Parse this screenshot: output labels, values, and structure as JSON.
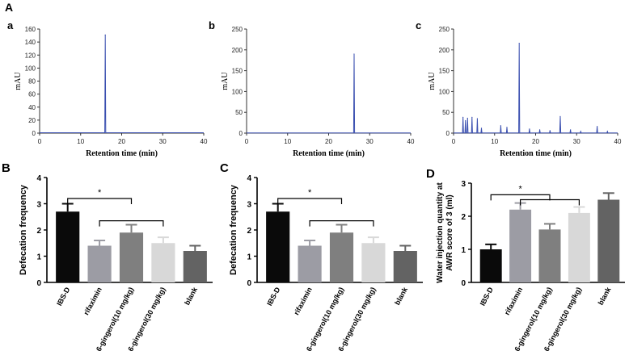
{
  "figure_label": "A",
  "colors": {
    "trace": "#3a4fb0",
    "axis": "#333333"
  },
  "chart_data": [
    {
      "id": "a",
      "type": "line",
      "panel_label": "a",
      "title": "",
      "xlabel": "Retention time (min)",
      "ylabel": "mAU",
      "xlim": [
        0,
        40
      ],
      "ylim": [
        0,
        160
      ],
      "xticks": [
        "0",
        "10",
        "20",
        "30",
        "40"
      ],
      "yticks": [
        "0",
        "20",
        "40",
        "60",
        "80",
        "100",
        "120",
        "140",
        "160"
      ],
      "peaks": [
        {
          "x": 16.0,
          "y": 151
        }
      ]
    },
    {
      "id": "b",
      "type": "line",
      "panel_label": "b",
      "title": "",
      "xlabel": "Retention time (min)",
      "ylabel": "mAU",
      "xlim": [
        0,
        40
      ],
      "ylim": [
        0,
        250
      ],
      "xticks": [
        "0",
        "10",
        "20",
        "30",
        "40"
      ],
      "yticks": [
        "0",
        "50",
        "100",
        "150",
        "200",
        "250"
      ],
      "peaks": [
        {
          "x": 26.2,
          "y": 190
        }
      ]
    },
    {
      "id": "c",
      "type": "line",
      "panel_label": "c",
      "title": "",
      "xlabel": "Retention time (min)",
      "ylabel": "mAU",
      "xlim": [
        0,
        40
      ],
      "ylim": [
        0,
        250
      ],
      "xticks": [
        "0",
        "10",
        "20",
        "30",
        "40"
      ],
      "yticks": [
        "0",
        "50",
        "100",
        "150",
        "200",
        "250"
      ],
      "peaks": [
        {
          "x": 2.3,
          "y": 38
        },
        {
          "x": 2.9,
          "y": 30
        },
        {
          "x": 3.4,
          "y": 36
        },
        {
          "x": 4.5,
          "y": 38
        },
        {
          "x": 5.8,
          "y": 35
        },
        {
          "x": 6.8,
          "y": 12
        },
        {
          "x": 11.5,
          "y": 18
        },
        {
          "x": 13.0,
          "y": 14
        },
        {
          "x": 16.0,
          "y": 216
        },
        {
          "x": 18.5,
          "y": 10
        },
        {
          "x": 21.0,
          "y": 8
        },
        {
          "x": 23.5,
          "y": 6
        },
        {
          "x": 26.0,
          "y": 40
        },
        {
          "x": 28.5,
          "y": 8
        },
        {
          "x": 31.0,
          "y": 4
        },
        {
          "x": 35.0,
          "y": 16
        },
        {
          "x": 37.5,
          "y": 4
        }
      ]
    },
    {
      "id": "B",
      "type": "bar",
      "panel_label": "B",
      "title": "",
      "xlabel": "",
      "ylabel": "Defecation frequency",
      "ylim": [
        0,
        4
      ],
      "yticks": [
        "0",
        "1",
        "2",
        "3",
        "4"
      ],
      "categories": [
        "IBS-D",
        "rifaximin",
        "6-gingerol(10 mg/kg)",
        "6-gingerol(30 mg/kg)",
        "blank"
      ],
      "values": [
        2.7,
        1.4,
        1.9,
        1.5,
        1.2
      ],
      "errors": [
        0.3,
        0.2,
        0.3,
        0.22,
        0.2
      ],
      "bar_colors": [
        "#0a0a0a",
        "#9c9ca4",
        "#7f7f7f",
        "#d8d8d8",
        "#636363"
      ],
      "significance": [
        {
          "from": 0,
          "to": 2,
          "y": 3.2,
          "label": "*"
        },
        {
          "from": 1,
          "to": 3,
          "y": 2.35,
          "label": ""
        }
      ]
    },
    {
      "id": "C",
      "type": "bar",
      "panel_label": "C",
      "title": "",
      "xlabel": "",
      "ylabel": "Defecation frequency",
      "ylim": [
        0,
        4
      ],
      "yticks": [
        "0",
        "1",
        "2",
        "3",
        "4"
      ],
      "categories": [
        "IBS-D",
        "rifaximin",
        "6-gingerol(10 mg/kg)",
        "6-gingerol(30 mg/kg)",
        "blank"
      ],
      "values": [
        2.7,
        1.4,
        1.9,
        1.5,
        1.2
      ],
      "errors": [
        0.3,
        0.2,
        0.3,
        0.22,
        0.2
      ],
      "bar_colors": [
        "#0a0a0a",
        "#9c9ca4",
        "#7f7f7f",
        "#d8d8d8",
        "#636363"
      ],
      "significance": [
        {
          "from": 0,
          "to": 2,
          "y": 3.2,
          "label": "*"
        },
        {
          "from": 1,
          "to": 3,
          "y": 2.35,
          "label": ""
        }
      ]
    },
    {
      "id": "D",
      "type": "bar",
      "panel_label": "D",
      "title": "",
      "xlabel": "",
      "ylabel": "Water injection quantity at AWR score of 3 (ml)",
      "ylabel_lines": [
        "Water injection quantity at",
        "AWR score of 3 (ml)"
      ],
      "ylim": [
        0,
        3
      ],
      "yticks": [
        "0",
        "1",
        "2",
        "3"
      ],
      "categories": [
        "IBS-D",
        "rifaximin",
        "6-gingerol(10 mg/kg)",
        "6-gingerol(30 mg/kg)",
        "blank"
      ],
      "values": [
        1.0,
        2.2,
        1.6,
        2.1,
        2.5
      ],
      "errors": [
        0.15,
        0.2,
        0.17,
        0.18,
        0.2
      ],
      "bar_colors": [
        "#0a0a0a",
        "#9c9ca4",
        "#7f7f7f",
        "#d8d8d8",
        "#636363"
      ],
      "significance": [
        {
          "from": 0,
          "to": 2,
          "y": 2.65,
          "label": "*"
        },
        {
          "from": 1,
          "to": 3,
          "y": 2.5,
          "label": ""
        }
      ]
    }
  ]
}
